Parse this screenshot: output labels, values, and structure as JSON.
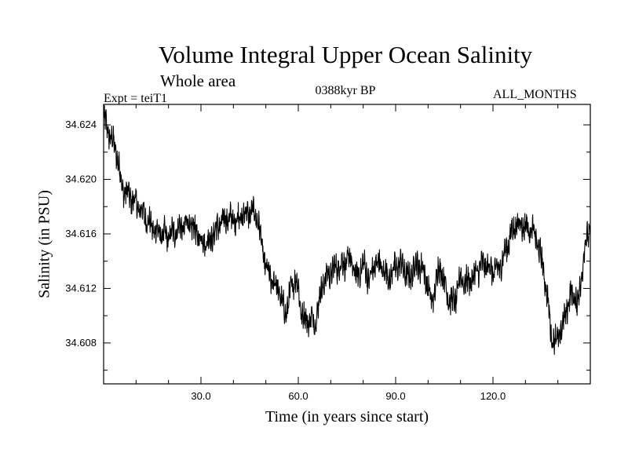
{
  "chart_data": {
    "type": "line",
    "title": "Volume Integral Upper Ocean Salinity",
    "subtitle": "Whole area",
    "experiment": "Expt = teiT1",
    "period": "0388kyr BP",
    "months": "ALL_MONTHS",
    "xlabel": "Time (in years since start)",
    "ylabel": "Salinity (in PSU)",
    "xlim": [
      0,
      150
    ],
    "ylim": [
      34.605,
      34.6255
    ],
    "xticks": [
      30,
      60,
      90,
      120
    ],
    "xtick_labels": [
      "30.0",
      "60.0",
      "90.0",
      "120.0"
    ],
    "yticks": [
      34.608,
      34.612,
      34.616,
      34.62,
      34.624
    ],
    "ytick_labels": [
      "34.608",
      "34.612",
      "34.616",
      "34.620",
      "34.624"
    ],
    "series": [
      {
        "name": "Salinity",
        "color": "#000000",
        "noise_amplitude": 0.0016,
        "x": [
          0,
          1,
          2,
          3,
          4,
          5,
          6,
          8,
          10,
          12,
          14,
          16,
          18,
          20,
          22,
          24,
          26,
          28,
          30,
          32,
          34,
          36,
          38,
          40,
          42,
          44,
          46,
          47.5,
          48.5,
          50,
          52,
          54,
          55,
          56,
          57,
          58,
          59,
          60,
          61,
          62,
          63,
          64,
          65,
          66,
          67,
          68,
          70,
          72,
          74,
          76,
          78,
          80,
          82,
          84,
          86,
          88,
          90,
          92,
          94,
          96,
          98,
          100,
          101,
          102,
          103,
          104,
          106,
          108,
          110,
          112,
          114,
          116,
          118,
          120,
          122,
          124,
          126,
          128,
          130,
          132,
          134,
          136,
          137,
          138,
          139,
          140,
          141,
          142,
          143,
          144,
          145,
          146,
          147,
          148,
          149,
          150
        ],
        "y": [
          34.6245,
          34.6238,
          34.6232,
          34.6226,
          34.622,
          34.6205,
          34.6192,
          34.6188,
          34.6182,
          34.6176,
          34.6168,
          34.6162,
          34.616,
          34.6158,
          34.6162,
          34.6165,
          34.6168,
          34.6163,
          34.6156,
          34.6154,
          34.616,
          34.6168,
          34.6172,
          34.617,
          34.6172,
          34.6175,
          34.6176,
          34.6172,
          34.6155,
          34.6135,
          34.6125,
          34.612,
          34.6108,
          34.6102,
          34.611,
          34.6122,
          34.6128,
          34.612,
          34.6102,
          34.6098,
          34.6096,
          34.6098,
          34.6094,
          34.6105,
          34.6118,
          34.6126,
          34.6132,
          34.6136,
          34.6138,
          34.6142,
          34.6128,
          34.6138,
          34.6126,
          34.614,
          34.6134,
          34.6128,
          34.6136,
          34.6138,
          34.6126,
          34.6138,
          34.6136,
          34.6122,
          34.6108,
          34.6118,
          34.6132,
          34.6135,
          34.6115,
          34.6108,
          34.6128,
          34.6124,
          34.6128,
          34.6136,
          34.6138,
          34.6132,
          34.6135,
          34.6148,
          34.6163,
          34.6168,
          34.6165,
          34.6163,
          34.6152,
          34.6128,
          34.6108,
          34.6085,
          34.6082,
          34.6084,
          34.6088,
          34.6098,
          34.6108,
          34.6115,
          34.6115,
          34.6108,
          34.6122,
          34.6146,
          34.6158,
          34.6164
        ]
      }
    ]
  }
}
